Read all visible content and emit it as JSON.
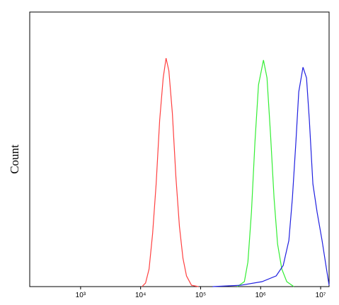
{
  "chart_data": {
    "type": "line",
    "y_label": "Count",
    "xscale": "log",
    "xlim": [
      142,
      13830000
    ],
    "ylim": [
      0,
      100
    ],
    "xticks": [
      {
        "value": 1000,
        "label": "10³"
      },
      {
        "value": 10000,
        "label": "10⁴"
      },
      {
        "value": 100000,
        "label": "10⁵"
      },
      {
        "value": 1000000,
        "label": "10⁶"
      },
      {
        "value": 10000000,
        "label": "10⁷"
      }
    ],
    "series": [
      {
        "color": "#ff4040",
        "x": [
          10560,
          12090,
          13840,
          15850,
          18150,
          20780,
          23790,
          26550,
          29580,
          33830,
          38740,
          44360,
          50800,
          58150,
          70350,
          92300
        ],
        "values": [
          0,
          1.3,
          6.4,
          19.3,
          37.4,
          60.6,
          76.0,
          83.2,
          78.6,
          63.1,
          39.9,
          21.9,
          10.3,
          3.9,
          0.5,
          0
        ]
      },
      {
        "color": "#33ee33",
        "x": [
          409300,
          536000,
          614000,
          703000,
          805000,
          922000,
          1115000,
          1277000,
          1462000,
          1674000,
          1916000,
          2254000,
          2724000,
          3573000
        ],
        "values": [
          0,
          1.8,
          9.0,
          27.1,
          52.8,
          73.5,
          82.5,
          76.0,
          55.4,
          32.2,
          15.5,
          6.4,
          1.8,
          0
        ]
      },
      {
        "color": "#2020e0",
        "x": [
          158500,
          469000,
          1056000,
          1816000,
          2377000,
          2955000,
          3382000,
          3873000,
          4316000,
          5080000,
          5818000,
          6487000,
          7430000,
          8730000,
          10560000,
          12770000,
          13830000
        ],
        "values": [
          0,
          0.5,
          1.8,
          3.9,
          7.7,
          16.8,
          32.2,
          52.8,
          70.9,
          79.9,
          76.0,
          60.6,
          37.4,
          27.1,
          16.8,
          5.2,
          0.5
        ]
      }
    ]
  }
}
